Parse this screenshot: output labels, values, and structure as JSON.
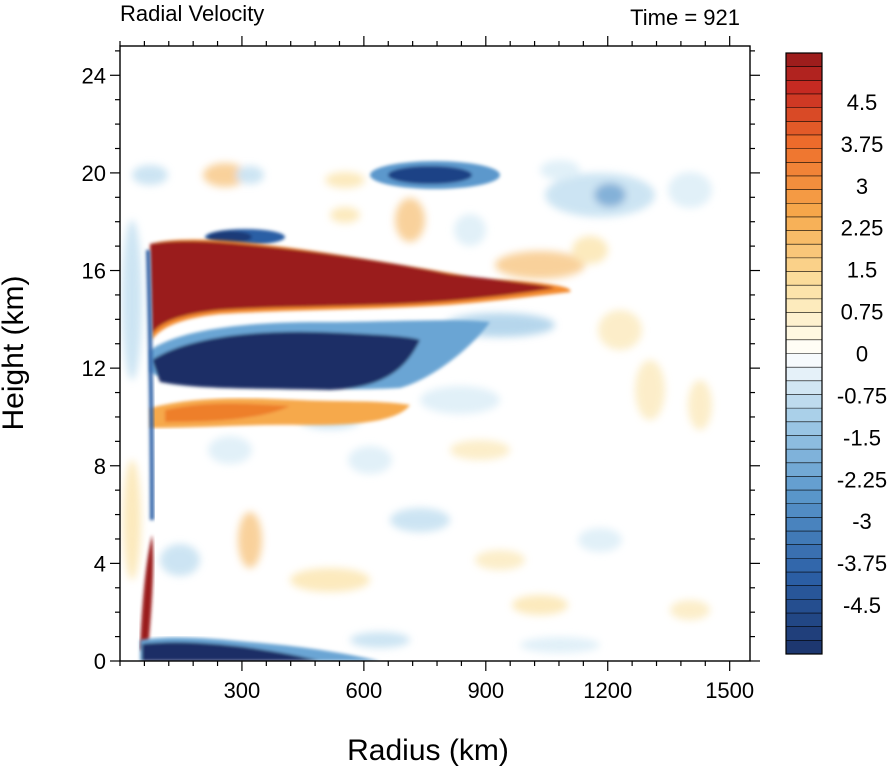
{
  "chart_data": {
    "type": "heatmap",
    "title": "Radial Velocity",
    "subtitle": "Time = 921",
    "xlabel": "Radius (km)",
    "ylabel": "Height (km)",
    "xlim": [
      0,
      1550
    ],
    "ylim": [
      0,
      25.2
    ],
    "xticks": [
      300,
      600,
      900,
      1200,
      1500
    ],
    "yticks": [
      0,
      4,
      8,
      12,
      16,
      20,
      24
    ],
    "xtick_labels": [
      "300",
      "600",
      "900",
      "1200",
      "1500"
    ],
    "ytick_labels": [
      "0",
      "4",
      "8",
      "12",
      "16",
      "20",
      "24"
    ],
    "colorbar": {
      "range": [
        -5.25,
        5.25
      ],
      "step": 0.25,
      "labels": [
        "4.5",
        "3.75",
        "3",
        "2.25",
        "1.5",
        "0.75",
        "0",
        "-0.75",
        "-1.5",
        "-2.25",
        "-3",
        "-3.75",
        "-4.5"
      ],
      "label_values": [
        4.5,
        3.75,
        3,
        2.25,
        1.5,
        0.75,
        0,
        -0.75,
        -1.5,
        -2.25,
        -3,
        -3.75,
        -4.5
      ],
      "colors": {
        "neg_max": "#1a2f66",
        "neg_mid": "#3a7dc0",
        "neg_low": "#b9dcef",
        "zero": "#ffffff",
        "pos_low": "#fbe8b0",
        "pos_mid": "#f38a2d",
        "pos_max": "#9a1a1c"
      }
    },
    "features": [
      {
        "name": "upper outflow",
        "sign": "positive",
        "r": [
          60,
          1070
        ],
        "z": [
          14.3,
          17.2
        ],
        "value": 5.5
      },
      {
        "name": "mid-level return",
        "sign": "negative",
        "r": [
          70,
          480
        ],
        "z": [
          10.9,
          13.8
        ],
        "value": -5.5
      },
      {
        "name": "secondary outflow",
        "sign": "positive",
        "r": [
          140,
          400
        ],
        "z": [
          9.4,
          10.4
        ],
        "value": 3.0
      },
      {
        "name": "boundary layer inflow",
        "sign": "negative",
        "r": [
          50,
          480
        ],
        "z": [
          0,
          1.3
        ],
        "value": -5.5
      },
      {
        "name": "eyewall outflow",
        "sign": "positive",
        "r": [
          55,
          75
        ],
        "z": [
          0.5,
          5.0
        ],
        "value": 5.5
      },
      {
        "name": "upper inflow",
        "sign": "negative",
        "r": [
          700,
          880
        ],
        "z": [
          19.7,
          20.6
        ],
        "value": -4.0
      }
    ]
  }
}
